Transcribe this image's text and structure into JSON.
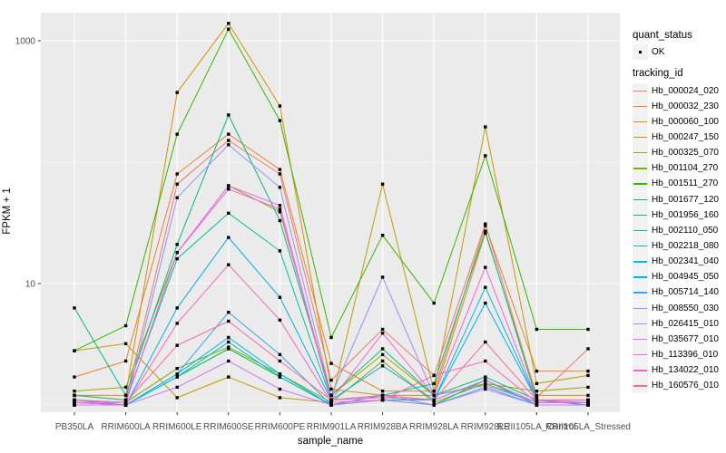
{
  "chart_data": {
    "type": "line",
    "title": "",
    "xlabel": "sample_name",
    "ylabel": "FPKM + 1",
    "y_scale": "log10",
    "grid": true,
    "panel_bg": "#EBEBEB",
    "grid_color": "#FFFFFF",
    "key_bg": "#F2F2F2",
    "axis_text_color": "#4D4D4D",
    "tick_color": "#333333",
    "point_color": "#000000",
    "y_major": [
      {
        "label": "10",
        "value": 10
      },
      {
        "label": "1000",
        "value": 1000
      }
    ],
    "y_minor_values": [
      1,
      100
    ],
    "y_range_log": [
      0.87,
      3.23
    ],
    "legend": {
      "position": "right",
      "quant_title": "quant_status",
      "quant_items": [
        {
          "label": "OK"
        }
      ],
      "tracking_title": "tracking_id"
    },
    "categories": [
      "PB350LA",
      "RRIM600LA",
      "RRIM600LE",
      "RRIM600SE",
      "RRIM600PE",
      "RRIM901LA",
      "RRIM928BA",
      "RRIM928LA",
      "RRIM928LE",
      "RRII105LA_Control",
      "RRII105LA_Stressed"
    ],
    "series": [
      {
        "name": "Hb_000024_020",
        "color": "#F8766D",
        "quant_status": "OK",
        "values": [
          1.2,
          1.1,
          66,
          151,
          80,
          1.6,
          4.2,
          1.75,
          31,
          1.15,
          2.9
        ]
      },
      {
        "name": "Hb_000032_230",
        "color": "#EA8331",
        "quant_status": "OK",
        "values": [
          1.7,
          2.3,
          80,
          170,
          87,
          2.2,
          1.3,
          1.3,
          30,
          1.9,
          1.9
        ]
      },
      {
        "name": "Hb_000060_100",
        "color": "#D89000",
        "quant_status": "OK",
        "values": [
          1.2,
          1.2,
          375,
          1390,
          290,
          1.35,
          1.2,
          1.2,
          26,
          1.2,
          1.2
        ]
      },
      {
        "name": "Hb_000247_150",
        "color": "#C49A00",
        "quant_status": "OK",
        "values": [
          2.8,
          3.2,
          1.15,
          1.7,
          1.15,
          1.05,
          66,
          1.3,
          195,
          1.5,
          1.75
        ]
      },
      {
        "name": "Hb_000325_070",
        "color": "#A3A500",
        "quant_status": "OK",
        "values": [
          1.3,
          1.4,
          18,
          64,
          39,
          1.2,
          2.6,
          1.2,
          1.5,
          1.3,
          1.4
        ]
      },
      {
        "name": "Hb_001104_270",
        "color": "#7CAE00",
        "quant_status": "OK",
        "values": [
          1.1,
          1.05,
          2.0,
          3.0,
          1.8,
          1.05,
          2.3,
          1.05,
          1.5,
          1.05,
          1.05
        ]
      },
      {
        "name": "Hb_001511_270",
        "color": "#39B600",
        "quant_status": "OK",
        "values": [
          2.8,
          4.5,
          170,
          1245,
          220,
          3.6,
          25,
          6.9,
          113,
          4.2,
          4.2
        ]
      },
      {
        "name": "Hb_001677_120",
        "color": "#00BB4E",
        "quant_status": "OK",
        "values": [
          1.05,
          1.0,
          1.7,
          2.9,
          1.7,
          1.0,
          1.1,
          1.0,
          1.6,
          1.0,
          1.0
        ]
      },
      {
        "name": "Hb_001956_160",
        "color": "#00BF7D",
        "quant_status": "OK",
        "values": [
          6.3,
          1.2,
          21,
          245,
          33,
          1.2,
          2.9,
          1.2,
          1.7,
          1.1,
          1.1
        ]
      },
      {
        "name": "Hb_002110_050",
        "color": "#00C1A3",
        "quant_status": "OK",
        "values": [
          1.2,
          1.1,
          16,
          38,
          18.6,
          1.1,
          1.2,
          1.5,
          27,
          1.1,
          1.1
        ]
      },
      {
        "name": "Hb_002218_080",
        "color": "#00BFC4",
        "quant_status": "OK",
        "values": [
          1.0,
          1.0,
          1.7,
          3.3,
          1.7,
          1.0,
          1.1,
          1.1,
          1.6,
          1.0,
          1.0
        ]
      },
      {
        "name": "Hb_002341_040",
        "color": "#00BAE0",
        "quant_status": "OK",
        "values": [
          1.0,
          1.0,
          1.8,
          3.6,
          1.8,
          1.0,
          1.2,
          1.1,
          9.3,
          1.1,
          1.0
        ]
      },
      {
        "name": "Hb_004945_050",
        "color": "#00B0F6",
        "quant_status": "OK",
        "values": [
          1.1,
          1.0,
          6.3,
          24,
          7.7,
          1.1,
          2.1,
          1.1,
          6.9,
          1.1,
          1.0
        ]
      },
      {
        "name": "Hb_005714_140",
        "color": "#35A2FF",
        "quant_status": "OK",
        "values": [
          1.0,
          1.0,
          1.8,
          5.8,
          2.6,
          1.0,
          1.2,
          1.0,
          1.4,
          1.0,
          1.0
        ]
      },
      {
        "name": "Hb_008550_030",
        "color": "#9590FF",
        "quant_status": "OK",
        "values": [
          1.05,
          1.0,
          51,
          139,
          62,
          1.2,
          11.3,
          1.2,
          1.45,
          1.05,
          1.05
        ]
      },
      {
        "name": "Hb_026415_010",
        "color": "#C77CFF",
        "quant_status": "OK",
        "values": [
          1.0,
          1.0,
          1.4,
          2.3,
          1.35,
          1.0,
          1.1,
          1.0,
          1.35,
          1.0,
          1.0
        ]
      },
      {
        "name": "Hb_035677_010",
        "color": "#E76BF3",
        "quant_status": "OK",
        "values": [
          1.05,
          1.05,
          18,
          64,
          44,
          1.1,
          1.2,
          1.1,
          1.6,
          1.05,
          1.05
        ]
      },
      {
        "name": "Hb_113396_010",
        "color": "#FA62DB",
        "quant_status": "OK",
        "values": [
          1.1,
          1.05,
          18,
          60,
          41,
          1.1,
          3.9,
          1.2,
          13.6,
          1.1,
          1.05
        ]
      },
      {
        "name": "Hb_134022_010",
        "color": "#FF62BC",
        "quant_status": "OK",
        "values": [
          1.05,
          1.0,
          4.7,
          14.3,
          5.0,
          1.05,
          1.1,
          1.75,
          2.3,
          1.05,
          1.05
        ]
      },
      {
        "name": "Hb_160576_010",
        "color": "#FF6A98",
        "quant_status": "OK",
        "values": [
          1.1,
          1.05,
          3.1,
          4.9,
          2.3,
          1.1,
          1.15,
          1.1,
          3.3,
          1.1,
          1.1
        ]
      }
    ]
  }
}
